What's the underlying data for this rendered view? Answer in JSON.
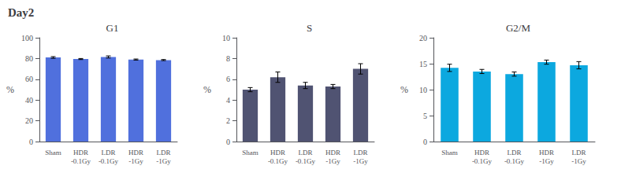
{
  "title": "Day2",
  "chart_data": [
    {
      "type": "bar",
      "title": "G1",
      "ylabel": "%",
      "categories": [
        "Sham",
        "HDR\n-0.1Gy",
        "LDR\n-0.1Gy",
        "HDR\n-1Gy",
        "LDR\n-1Gy"
      ],
      "values": [
        81.0,
        79.5,
        81.5,
        79.0,
        78.5
      ],
      "errors": [
        0.8,
        0.5,
        1.0,
        0.5,
        0.5
      ],
      "ylim": [
        0,
        100
      ],
      "yticks": [
        0,
        20,
        40,
        60,
        80,
        100
      ],
      "grid": false
    },
    {
      "type": "bar",
      "title": "S",
      "ylabel": "%",
      "categories": [
        "Sham",
        "HDR\n-0.1Gy",
        "LDR\n-0.1Gy",
        "HDR\n-1Gy",
        "LDR\n-1Gy"
      ],
      "values": [
        5.0,
        6.2,
        5.4,
        5.3,
        7.0
      ],
      "errors": [
        0.2,
        0.5,
        0.3,
        0.2,
        0.5
      ],
      "ylim": [
        0,
        10
      ],
      "yticks": [
        0,
        2,
        4,
        6,
        8,
        10
      ],
      "grid": false
    },
    {
      "type": "bar",
      "title": "G2/M",
      "ylabel": "%",
      "categories": [
        "Sham",
        "HDR\n-0.1Gy",
        "LDR\n-0.1Gy",
        "HDR\n-1Gy",
        "LDR\n-1Gy"
      ],
      "values": [
        14.2,
        13.5,
        13.0,
        15.3,
        14.7
      ],
      "errors": [
        0.7,
        0.4,
        0.4,
        0.4,
        0.7
      ],
      "ylim": [
        0,
        20
      ],
      "yticks": [
        0,
        5,
        10,
        15,
        20
      ],
      "grid": false
    }
  ]
}
